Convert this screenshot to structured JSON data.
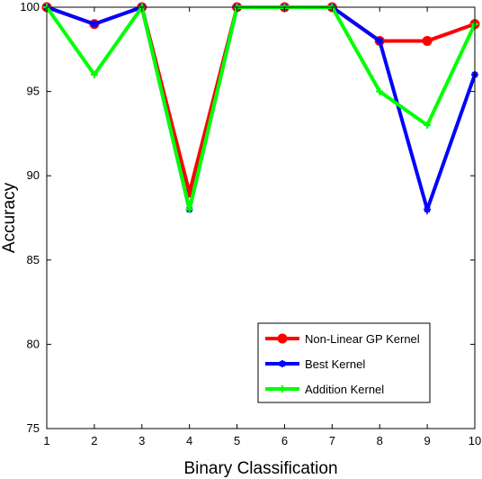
{
  "chart_data": {
    "type": "line",
    "title": "",
    "xlabel": "Binary Classification",
    "ylabel": "Accuracy",
    "xlim": [
      1,
      10
    ],
    "ylim": [
      75,
      100
    ],
    "x": [
      1,
      2,
      3,
      4,
      5,
      6,
      7,
      8,
      9,
      10
    ],
    "xticks": [
      "1",
      "2",
      "3",
      "4",
      "5",
      "6",
      "7",
      "8",
      "9",
      "10"
    ],
    "yticks": [
      "75",
      "80",
      "85",
      "90",
      "95",
      "100"
    ],
    "grid": false,
    "legend_position": "bottom-right",
    "series": [
      {
        "name": "Non-Linear GP Kernel",
        "color": "#ff0000",
        "marker": "circle",
        "values": [
          100,
          99,
          100,
          89,
          100,
          100,
          100,
          98,
          98,
          99
        ]
      },
      {
        "name": "Best Kernel",
        "color": "#0000ff",
        "marker": "star",
        "values": [
          100,
          99,
          100,
          88,
          100,
          100,
          100,
          98,
          88,
          96
        ]
      },
      {
        "name": "Addition Kernel",
        "color": "#00ff00",
        "marker": "plus",
        "values": [
          100,
          96,
          100,
          88,
          100,
          100,
          100,
          95,
          93,
          99
        ]
      }
    ]
  }
}
